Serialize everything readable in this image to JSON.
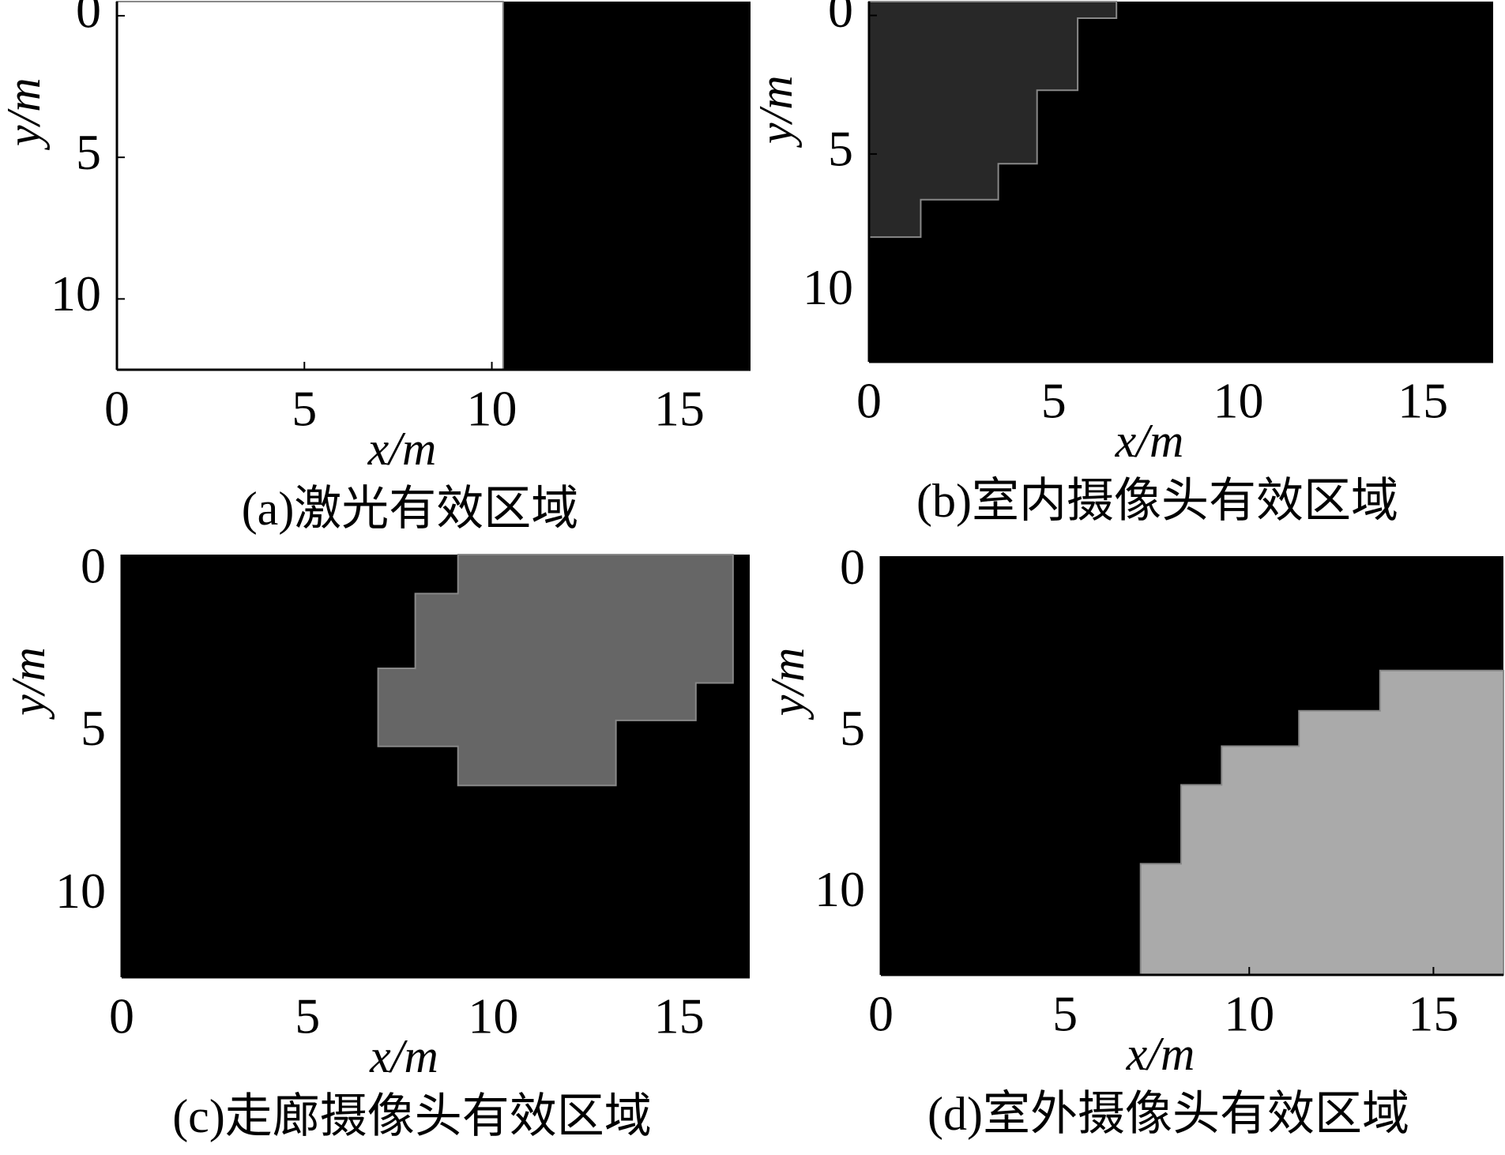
{
  "chart_data": [
    {
      "type": "region",
      "caption": "(a)激光有效区域",
      "xlabel": "x/m",
      "ylabel": "y/m",
      "xlim": [
        0,
        16.9
      ],
      "ylim": [
        12.5,
        -0.5
      ],
      "xticks": [
        0,
        5,
        10,
        15
      ],
      "yticks": [
        0,
        5,
        10
      ],
      "background": "#000000",
      "regions": [
        {
          "color": "#ffffff",
          "points": [
            [
              0,
              -0.5
            ],
            [
              10.3,
              -0.5
            ],
            [
              10.3,
              12.5
            ],
            [
              0,
              12.5
            ]
          ]
        }
      ]
    },
    {
      "type": "region",
      "caption": "(b)室内摄像头有效区域",
      "xlabel": "x/m",
      "ylabel": "y/m",
      "xlim": [
        0,
        16.9
      ],
      "ylim": [
        12.5,
        -0.5
      ],
      "xticks": [
        0,
        5,
        10,
        15
      ],
      "yticks": [
        0,
        5,
        10
      ],
      "background": "#000000",
      "regions": [
        {
          "color": "#282828",
          "points": [
            [
              0,
              -0.5
            ],
            [
              6.7,
              -0.5
            ],
            [
              6.7,
              0.1
            ],
            [
              5.65,
              0.1
            ],
            [
              5.65,
              2.7
            ],
            [
              4.55,
              2.7
            ],
            [
              4.55,
              5.35
            ],
            [
              3.5,
              5.35
            ],
            [
              3.5,
              6.65
            ],
            [
              1.4,
              6.65
            ],
            [
              1.4,
              8
            ],
            [
              0,
              8
            ]
          ]
        }
      ]
    },
    {
      "type": "region",
      "caption": "(c)走廊摄像头有效区域",
      "xlabel": "x/m",
      "ylabel": "y/m",
      "xlim": [
        0,
        16.9
      ],
      "ylim": [
        12.5,
        -0.5
      ],
      "xticks": [
        0,
        5,
        10,
        15
      ],
      "yticks": [
        0,
        5,
        10
      ],
      "background": "#000000",
      "regions": [
        {
          "color": "#666666",
          "points": [
            [
              9.05,
              -0.5
            ],
            [
              16.45,
              -0.5
            ],
            [
              16.45,
              3.45
            ],
            [
              15.45,
              3.45
            ],
            [
              15.45,
              4.6
            ],
            [
              13.3,
              4.6
            ],
            [
              13.3,
              6.6
            ],
            [
              9.05,
              6.6
            ],
            [
              9.05,
              5.4
            ],
            [
              6.9,
              5.4
            ],
            [
              6.9,
              3
            ],
            [
              7.9,
              3
            ],
            [
              7.9,
              0.7
            ],
            [
              9.05,
              0.7
            ]
          ]
        }
      ]
    },
    {
      "type": "region",
      "caption": "(d)室外摄像头有效区域",
      "xlabel": "x/m",
      "ylabel": "y/m",
      "xlim": [
        0,
        16.9
      ],
      "ylim": [
        12.5,
        -0.5
      ],
      "xticks": [
        0,
        5,
        10,
        15
      ],
      "yticks": [
        0,
        5,
        10
      ],
      "background": "#000000",
      "regions": [
        {
          "color": "#aaaaaa",
          "points": [
            [
              16.9,
              3.05
            ],
            [
              16.9,
              12.5
            ],
            [
              7.05,
              12.5
            ],
            [
              7.05,
              9.05
            ],
            [
              8.15,
              9.05
            ],
            [
              8.15,
              6.6
            ],
            [
              9.25,
              6.6
            ],
            [
              9.25,
              5.4
            ],
            [
              11.35,
              5.4
            ],
            [
              11.35,
              4.3
            ],
            [
              13.55,
              4.3
            ],
            [
              13.55,
              3.05
            ]
          ]
        }
      ]
    }
  ]
}
